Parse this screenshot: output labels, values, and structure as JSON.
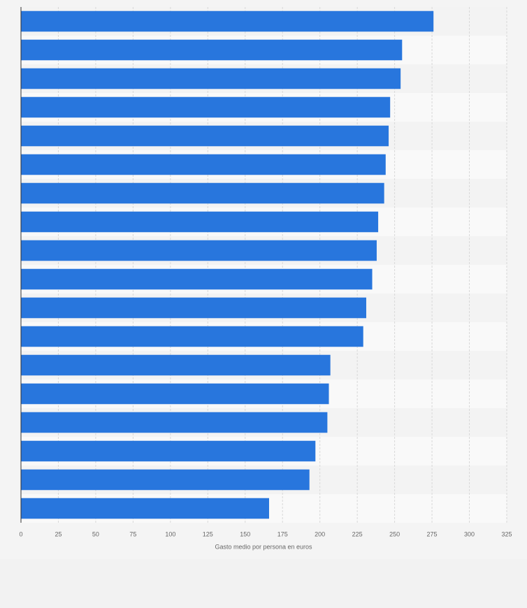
{
  "chart_data": {
    "type": "bar",
    "orientation": "horizontal",
    "categories": [
      null,
      null,
      null,
      null,
      null,
      null,
      null,
      null,
      null,
      null,
      null,
      null,
      null,
      null,
      null,
      null,
      null,
      null
    ],
    "values": [
      276,
      255,
      254,
      247,
      246,
      244,
      243,
      239,
      238,
      235,
      231,
      229,
      207,
      206,
      205,
      197,
      193,
      166
    ],
    "color": "#2876dd",
    "x_label": "Gasto medio por persona en euros",
    "xlim": [
      0,
      325
    ],
    "xticks": [
      0,
      25,
      50,
      75,
      100,
      125,
      150,
      175,
      200,
      225,
      250,
      275,
      300,
      325
    ],
    "grid": true
  }
}
